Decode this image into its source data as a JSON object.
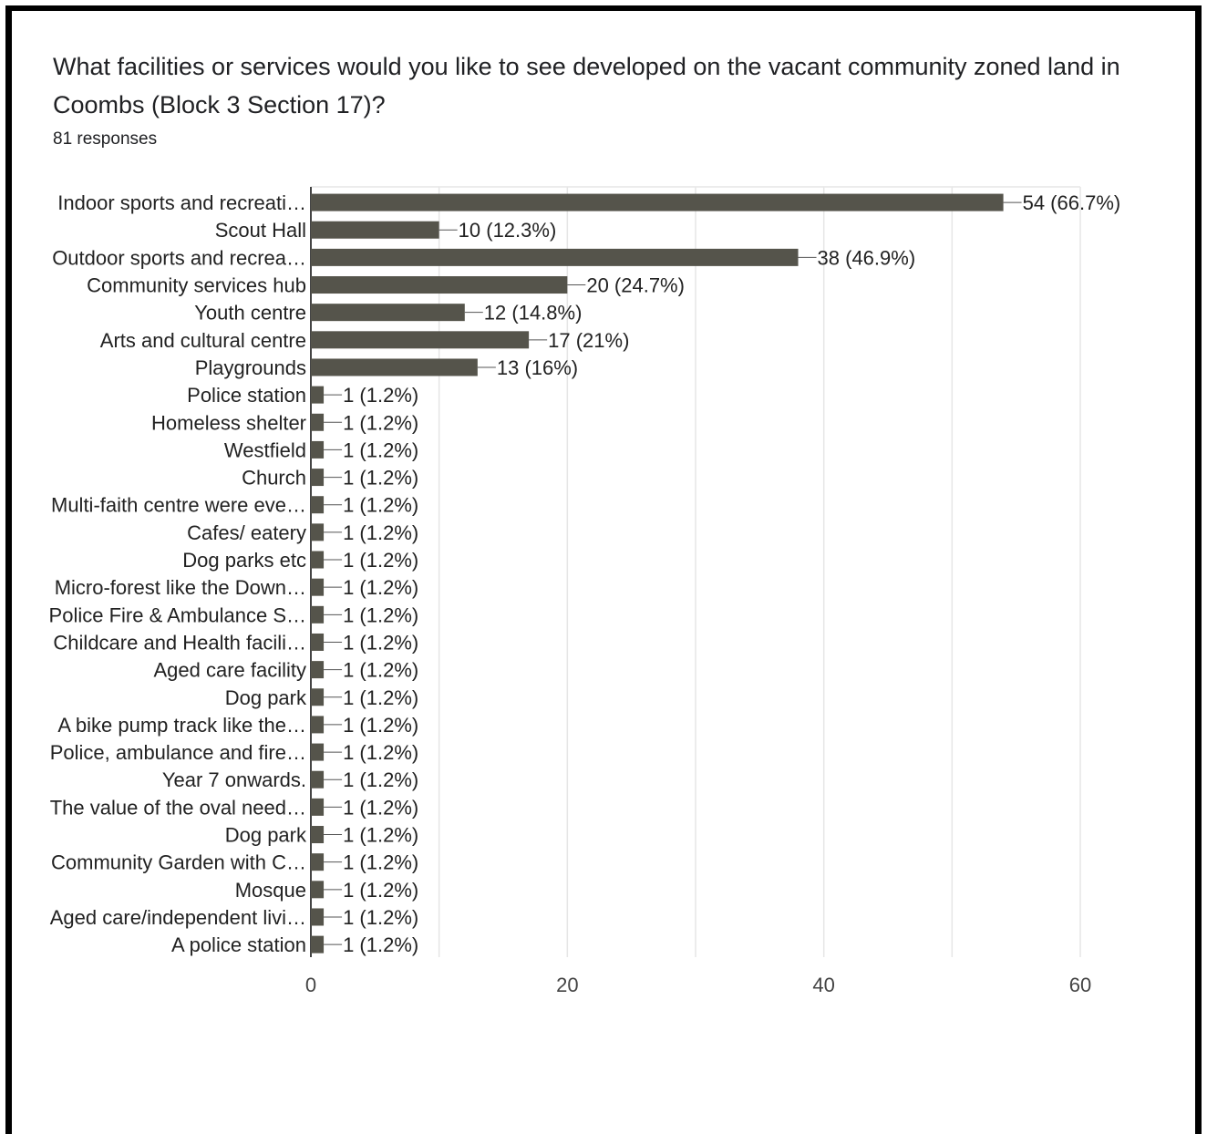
{
  "header": {
    "question": "What facilities or services would you like to see developed on the vacant community zoned land in Coombs (Block 3 Section 17)?",
    "responses": "81 responses"
  },
  "colors": {
    "bar": "#55544b",
    "grid": "#e6e6e6",
    "axis": "#444444"
  },
  "chart_data": {
    "type": "bar",
    "orientation": "horizontal",
    "title": "What facilities or services would you like to see developed on the vacant community zoned land in Coombs (Block 3 Section 17)?",
    "categories": [
      "Indoor sports and recreati…",
      "Scout Hall",
      "Outdoor sports and recrea…",
      "Community services hub",
      "Youth centre",
      "Arts and cultural centre",
      "Playgrounds",
      "Police station",
      "Homeless shelter",
      "Westfield",
      "Church",
      "Multi-faith centre were eve…",
      "Cafes/ eatery",
      "Dog parks etc",
      "Micro-forest like the Down…",
      "Police Fire & Ambulance S…",
      "Childcare and Health facili…",
      "Aged care facility",
      "Dog park",
      "A bike pump track like the…",
      "Police, ambulance and fire…",
      "Year 7 onwards.",
      "The value of the oval need…",
      "Dog park",
      "Community Garden with C…",
      "Mosque",
      "Aged care/independent livi…",
      "A police station"
    ],
    "values": [
      54,
      10,
      38,
      20,
      12,
      17,
      13,
      1,
      1,
      1,
      1,
      1,
      1,
      1,
      1,
      1,
      1,
      1,
      1,
      1,
      1,
      1,
      1,
      1,
      1,
      1,
      1,
      1
    ],
    "labels": [
      "54 (66.7%)",
      "10 (12.3%)",
      "38 (46.9%)",
      "20 (24.7%)",
      "12 (14.8%)",
      "17 (21%)",
      "13 (16%)",
      "1 (1.2%)",
      "1 (1.2%)",
      "1 (1.2%)",
      "1 (1.2%)",
      "1 (1.2%)",
      "1 (1.2%)",
      "1 (1.2%)",
      "1 (1.2%)",
      "1 (1.2%)",
      "1 (1.2%)",
      "1 (1.2%)",
      "1 (1.2%)",
      "1 (1.2%)",
      "1 (1.2%)",
      "1 (1.2%)",
      "1 (1.2%)",
      "1 (1.2%)",
      "1 (1.2%)",
      "1 (1.2%)",
      "1 (1.2%)",
      "1 (1.2%)"
    ],
    "xlim": [
      0,
      60
    ],
    "xticks": [
      0,
      20,
      40,
      60
    ],
    "grid": true
  }
}
